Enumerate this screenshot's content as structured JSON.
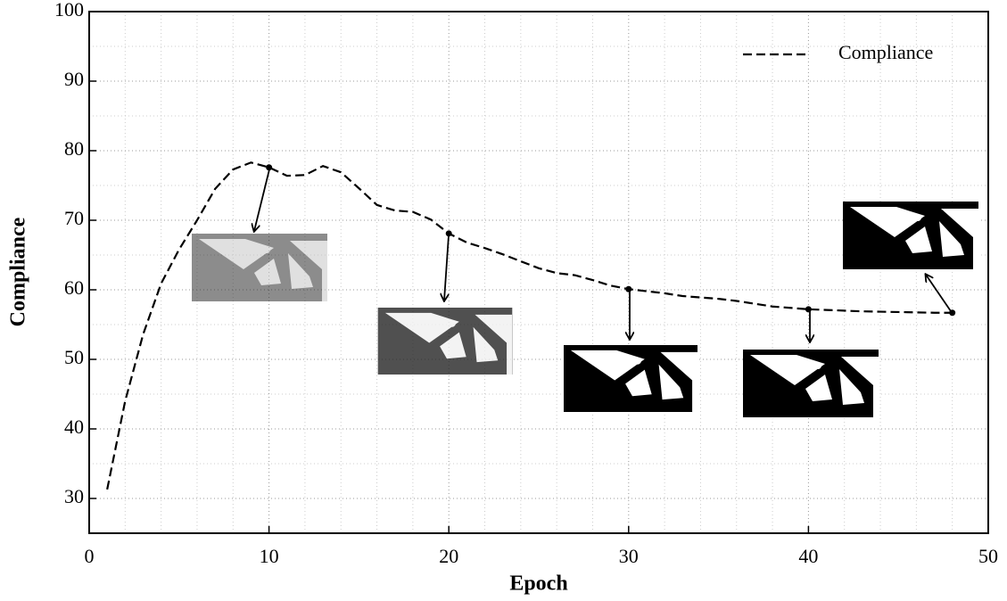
{
  "chart_data": {
    "type": "line",
    "xlabel": "Epoch",
    "ylabel": "Compliance",
    "x": [
      1,
      2,
      3,
      4,
      5,
      6,
      7,
      8,
      9,
      10,
      11,
      12,
      13,
      14,
      15,
      16,
      17,
      18,
      19,
      20,
      21,
      22,
      23,
      24,
      25,
      26,
      27,
      28,
      29,
      30,
      31,
      32,
      33,
      34,
      35,
      36,
      37,
      38,
      39,
      40,
      41,
      42,
      43,
      44,
      45,
      46,
      47,
      48
    ],
    "series": [
      {
        "name": "Compliance",
        "color": "#000000",
        "values": [
          31.3,
          44,
          53.6,
          60.9,
          65.8,
          70,
          74.5,
          77.3,
          78.3,
          77.6,
          76.4,
          76.5,
          77.8,
          76.9,
          74.6,
          72.2,
          71.4,
          71.2,
          70.1,
          68.1,
          66.8,
          66,
          65.1,
          64.1,
          63.1,
          62.4,
          62.1,
          61.4,
          60.6,
          60.1,
          59.8,
          59.5,
          59.1,
          58.9,
          58.7,
          58.4,
          58,
          57.6,
          57.4,
          57.2,
          57.1,
          57,
          56.9,
          56.85,
          56.8,
          56.75,
          56.7,
          56.7
        ]
      }
    ],
    "snapshot_epochs": [
      10,
      20,
      30,
      40,
      48
    ],
    "xlim": [
      0,
      50
    ],
    "xticks": [
      0,
      10,
      20,
      30,
      40,
      50
    ],
    "ylim": [
      25,
      100
    ],
    "yticks": [
      30,
      40,
      50,
      60,
      70,
      80,
      90,
      100
    ],
    "minor_xticks": [
      2,
      4,
      6,
      8,
      12,
      14,
      16,
      18,
      22,
      24,
      26,
      28,
      32,
      34,
      36,
      38,
      42,
      44,
      46,
      48
    ],
    "minor_yticks": [
      35,
      45,
      55,
      65,
      75,
      85,
      95
    ],
    "grid": true,
    "legend": "upper right"
  }
}
